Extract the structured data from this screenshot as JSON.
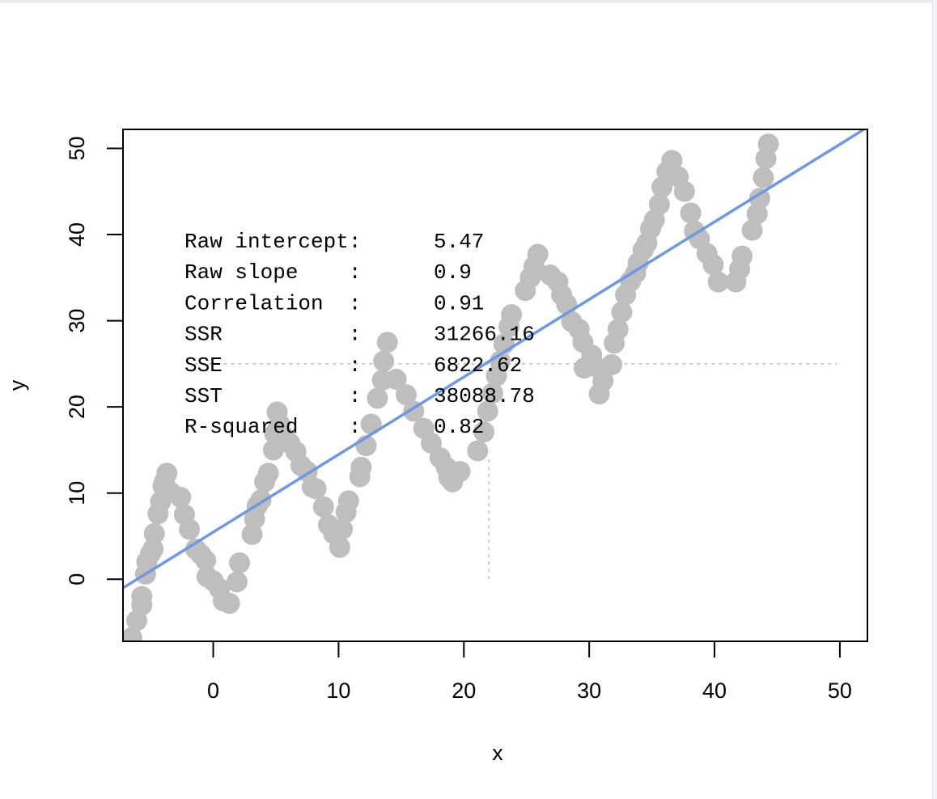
{
  "chart_data": {
    "type": "scatter",
    "title": "",
    "xlabel": "x",
    "ylabel": "y",
    "xlim": [
      -7.2,
      52.2
    ],
    "ylim": [
      -7.2,
      52.2
    ],
    "x_ticks": [
      0,
      10,
      20,
      30,
      40,
      50
    ],
    "y_ticks": [
      0,
      10,
      20,
      30,
      40,
      50
    ],
    "point_color": "#bebebe",
    "line_color": "#6f98e0",
    "guide_color": "#cccccc",
    "fit_line": {
      "intercept": 5.47,
      "slope": 0.9
    },
    "mean_guides": {
      "x": 22,
      "y": 25
    },
    "stats": [
      {
        "label": "Raw intercept:",
        "value": "5.47"
      },
      {
        "label": "Raw slope    :",
        "value": "0.9"
      },
      {
        "label": "Correlation  :",
        "value": "0.91"
      },
      {
        "label": "SSR          :",
        "value": "31266.16"
      },
      {
        "label": "SSE          :",
        "value": "6822.62"
      },
      {
        "label": "SST          :",
        "value": "38088.78"
      },
      {
        "label": "R-squared    :",
        "value": "0.82"
      }
    ],
    "points": [
      [
        -6.5,
        -6.8
      ],
      [
        -6.1,
        -4.8
      ],
      [
        -5.7,
        -3.0
      ],
      [
        -5.7,
        -2.0
      ],
      [
        -5.4,
        0.6
      ],
      [
        -5.3,
        2.0
      ],
      [
        -5.0,
        3.0
      ],
      [
        -4.8,
        3.5
      ],
      [
        -4.7,
        5.3
      ],
      [
        -4.4,
        7.6
      ],
      [
        -4.2,
        9.0
      ],
      [
        -4.0,
        10.8
      ],
      [
        -3.9,
        11.3
      ],
      [
        -3.7,
        12.3
      ],
      [
        -3.4,
        10.1
      ],
      [
        -2.6,
        9.5
      ],
      [
        -2.3,
        7.5
      ],
      [
        -1.9,
        5.8
      ],
      [
        -1.4,
        3.5
      ],
      [
        -1.0,
        2.9
      ],
      [
        -0.6,
        2.2
      ],
      [
        -0.5,
        0.3
      ],
      [
        0.0,
        -0.2
      ],
      [
        0.5,
        -1.1
      ],
      [
        0.8,
        -2.5
      ],
      [
        1.3,
        -2.8
      ],
      [
        1.9,
        -0.3
      ],
      [
        2.1,
        1.9
      ],
      [
        3.1,
        5.2
      ],
      [
        3.3,
        7.0
      ],
      [
        3.5,
        8.5
      ],
      [
        3.8,
        9.2
      ],
      [
        4.1,
        11.3
      ],
      [
        4.4,
        12.3
      ],
      [
        4.8,
        15.0
      ],
      [
        4.9,
        16.9
      ],
      [
        5.1,
        19.4
      ],
      [
        5.3,
        18.0
      ],
      [
        5.7,
        16.5
      ],
      [
        6.1,
        15.8
      ],
      [
        6.6,
        14.8
      ],
      [
        7.0,
        13.2
      ],
      [
        7.5,
        12.5
      ],
      [
        7.9,
        10.7
      ],
      [
        8.2,
        10.5
      ],
      [
        8.8,
        8.4
      ],
      [
        9.2,
        6.3
      ],
      [
        9.6,
        5.3
      ],
      [
        10.1,
        3.7
      ],
      [
        10.3,
        5.8
      ],
      [
        10.6,
        7.8
      ],
      [
        10.8,
        9.1
      ],
      [
        11.7,
        11.9
      ],
      [
        11.8,
        13.0
      ],
      [
        12.2,
        15.5
      ],
      [
        12.6,
        18.0
      ],
      [
        13.1,
        21.0
      ],
      [
        13.5,
        23.1
      ],
      [
        13.6,
        25.3
      ],
      [
        13.9,
        27.5
      ],
      [
        14.6,
        23.2
      ],
      [
        15.4,
        21.4
      ],
      [
        16.0,
        19.5
      ],
      [
        16.8,
        17.5
      ],
      [
        17.4,
        15.8
      ],
      [
        18.1,
        14.1
      ],
      [
        18.6,
        13.0
      ],
      [
        18.8,
        11.8
      ],
      [
        19.1,
        11.3
      ],
      [
        19.7,
        12.5
      ],
      [
        21.1,
        14.9
      ],
      [
        21.6,
        17.1
      ],
      [
        21.9,
        19.5
      ],
      [
        22.3,
        21.6
      ],
      [
        22.6,
        23.6
      ],
      [
        22.9,
        25.3
      ],
      [
        23.2,
        27.3
      ],
      [
        23.6,
        29.3
      ],
      [
        23.8,
        30.7
      ],
      [
        24.9,
        33.5
      ],
      [
        25.3,
        35.0
      ],
      [
        25.6,
        36.3
      ],
      [
        25.9,
        37.7
      ],
      [
        26.9,
        35.3
      ],
      [
        27.5,
        34.5
      ],
      [
        27.8,
        33.0
      ],
      [
        28.2,
        31.9
      ],
      [
        28.6,
        29.9
      ],
      [
        29.2,
        29.0
      ],
      [
        29.5,
        27.5
      ],
      [
        29.6,
        24.5
      ],
      [
        30.2,
        26.0
      ],
      [
        30.5,
        24.7
      ],
      [
        30.8,
        21.5
      ],
      [
        31.1,
        23.0
      ],
      [
        31.8,
        24.9
      ],
      [
        32.0,
        27.4
      ],
      [
        32.3,
        29.0
      ],
      [
        32.6,
        31.0
      ],
      [
        32.9,
        33.0
      ],
      [
        33.3,
        34.6
      ],
      [
        33.7,
        35.5
      ],
      [
        33.9,
        36.7
      ],
      [
        34.3,
        38.2
      ],
      [
        34.6,
        39.0
      ],
      [
        34.9,
        40.7
      ],
      [
        35.2,
        41.7
      ],
      [
        35.6,
        43.5
      ],
      [
        35.8,
        45.5
      ],
      [
        36.2,
        47.3
      ],
      [
        36.6,
        48.6
      ],
      [
        37.1,
        46.7
      ],
      [
        37.6,
        45.0
      ],
      [
        38.1,
        42.5
      ],
      [
        38.4,
        40.4
      ],
      [
        38.8,
        39.5
      ],
      [
        39.4,
        37.8
      ],
      [
        39.9,
        36.5
      ],
      [
        40.3,
        34.5
      ],
      [
        41.7,
        34.5
      ],
      [
        42.0,
        36.0
      ],
      [
        42.2,
        37.5
      ],
      [
        43.0,
        40.5
      ],
      [
        43.4,
        42.4
      ],
      [
        43.6,
        44.2
      ],
      [
        43.9,
        46.6
      ],
      [
        44.1,
        48.8
      ],
      [
        44.3,
        50.5
      ]
    ]
  }
}
